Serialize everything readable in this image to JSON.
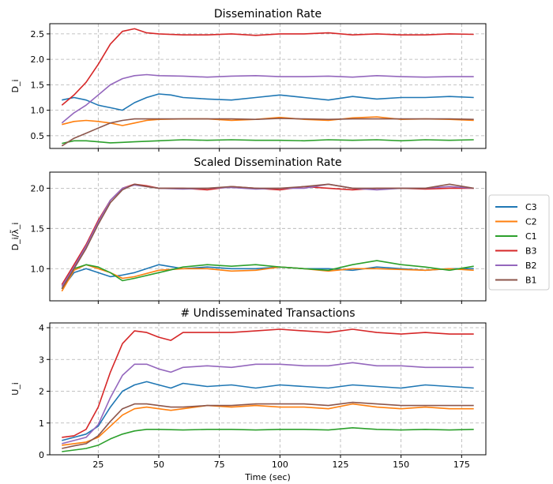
{
  "chart_data": [
    {
      "type": "line",
      "title": "Dissemination Rate",
      "ylabel": "D_i",
      "xlabel": "",
      "xlim": [
        5,
        185
      ],
      "ylim": [
        0.25,
        2.7
      ],
      "xticks": [
        25,
        50,
        75,
        100,
        125,
        150,
        175
      ],
      "yticks": [
        0.5,
        1.0,
        1.5,
        2.0,
        2.5
      ],
      "ytick_labels": [
        "0.5",
        "1.0",
        "1.5",
        "2.0",
        "2.5"
      ],
      "grid": true,
      "series": [
        {
          "name": "C3",
          "color": "#1f77b4",
          "x": [
            10,
            15,
            20,
            25,
            30,
            35,
            40,
            45,
            50,
            55,
            60,
            70,
            80,
            90,
            100,
            110,
            120,
            130,
            140,
            150,
            160,
            170,
            180
          ],
          "y": [
            1.2,
            1.25,
            1.2,
            1.1,
            1.05,
            1.0,
            1.15,
            1.25,
            1.32,
            1.3,
            1.25,
            1.22,
            1.2,
            1.25,
            1.3,
            1.25,
            1.2,
            1.27,
            1.22,
            1.25,
            1.25,
            1.27,
            1.25
          ]
        },
        {
          "name": "C2",
          "color": "#ff7f0e",
          "x": [
            10,
            15,
            20,
            25,
            30,
            35,
            40,
            45,
            50,
            60,
            70,
            80,
            90,
            100,
            110,
            120,
            130,
            140,
            150,
            160,
            170,
            180
          ],
          "y": [
            0.72,
            0.78,
            0.8,
            0.78,
            0.75,
            0.7,
            0.75,
            0.8,
            0.82,
            0.83,
            0.83,
            0.8,
            0.82,
            0.86,
            0.82,
            0.8,
            0.85,
            0.87,
            0.82,
            0.83,
            0.82,
            0.8
          ]
        },
        {
          "name": "C1",
          "color": "#2ca02c",
          "x": [
            10,
            15,
            20,
            25,
            30,
            35,
            40,
            50,
            60,
            70,
            80,
            90,
            100,
            110,
            120,
            130,
            140,
            150,
            160,
            170,
            180
          ],
          "y": [
            0.35,
            0.4,
            0.4,
            0.38,
            0.36,
            0.37,
            0.38,
            0.4,
            0.42,
            0.41,
            0.42,
            0.41,
            0.41,
            0.4,
            0.42,
            0.41,
            0.42,
            0.4,
            0.42,
            0.41,
            0.42
          ]
        },
        {
          "name": "B3",
          "color": "#d62728",
          "x": [
            10,
            15,
            20,
            25,
            30,
            35,
            40,
            45,
            50,
            60,
            70,
            80,
            90,
            100,
            110,
            120,
            130,
            140,
            150,
            160,
            170,
            180
          ],
          "y": [
            1.1,
            1.3,
            1.55,
            1.9,
            2.3,
            2.55,
            2.6,
            2.52,
            2.5,
            2.48,
            2.48,
            2.5,
            2.47,
            2.5,
            2.5,
            2.52,
            2.48,
            2.5,
            2.48,
            2.48,
            2.5,
            2.49
          ]
        },
        {
          "name": "B2",
          "color": "#9467bd",
          "x": [
            10,
            15,
            20,
            25,
            30,
            35,
            40,
            45,
            50,
            60,
            70,
            80,
            90,
            100,
            110,
            120,
            130,
            140,
            150,
            160,
            170,
            180
          ],
          "y": [
            0.75,
            0.95,
            1.1,
            1.3,
            1.5,
            1.62,
            1.68,
            1.7,
            1.68,
            1.67,
            1.65,
            1.67,
            1.68,
            1.66,
            1.66,
            1.67,
            1.65,
            1.68,
            1.66,
            1.65,
            1.66,
            1.66
          ]
        },
        {
          "name": "B1",
          "color": "#8c564b",
          "x": [
            10,
            15,
            20,
            25,
            30,
            35,
            40,
            45,
            50,
            60,
            70,
            80,
            90,
            100,
            110,
            120,
            130,
            140,
            150,
            160,
            170,
            180
          ],
          "y": [
            0.3,
            0.45,
            0.55,
            0.65,
            0.75,
            0.8,
            0.83,
            0.83,
            0.83,
            0.83,
            0.83,
            0.83,
            0.82,
            0.84,
            0.83,
            0.82,
            0.83,
            0.83,
            0.83,
            0.83,
            0.83,
            0.82
          ]
        }
      ]
    },
    {
      "type": "line",
      "title": "Scaled Dissemination Rate",
      "ylabel": "D_i/λ̃_i",
      "xlabel": "",
      "xlim": [
        5,
        185
      ],
      "ylim": [
        0.6,
        2.2
      ],
      "xticks": [
        25,
        50,
        75,
        100,
        125,
        150,
        175
      ],
      "yticks": [
        1.0,
        1.5,
        2.0
      ],
      "ytick_labels": [
        "1.0",
        "1.5",
        "2.0"
      ],
      "grid": true,
      "series": [
        {
          "name": "C3",
          "color": "#1f77b4",
          "x": [
            10,
            15,
            20,
            25,
            30,
            35,
            40,
            50,
            60,
            70,
            80,
            90,
            100,
            110,
            120,
            130,
            140,
            150,
            160,
            170,
            180
          ],
          "y": [
            0.75,
            0.95,
            1.0,
            0.95,
            0.9,
            0.92,
            0.95,
            1.05,
            1.0,
            1.02,
            1.0,
            1.0,
            1.02,
            1.0,
            1.0,
            0.98,
            1.02,
            1.0,
            0.98,
            1.0,
            1.0
          ]
        },
        {
          "name": "C2",
          "color": "#ff7f0e",
          "x": [
            10,
            15,
            20,
            25,
            30,
            35,
            40,
            50,
            60,
            70,
            80,
            90,
            100,
            110,
            120,
            130,
            140,
            150,
            160,
            170,
            180
          ],
          "y": [
            0.72,
            0.98,
            1.05,
            1.0,
            0.95,
            0.88,
            0.9,
            0.98,
            1.0,
            1.0,
            0.97,
            0.98,
            1.02,
            1.0,
            0.97,
            1.0,
            1.0,
            0.99,
            0.98,
            1.0,
            0.98
          ]
        },
        {
          "name": "C1",
          "color": "#2ca02c",
          "x": [
            10,
            15,
            20,
            25,
            30,
            35,
            40,
            50,
            60,
            70,
            80,
            90,
            100,
            110,
            120,
            130,
            140,
            150,
            160,
            170,
            180
          ],
          "y": [
            0.75,
            1.0,
            1.05,
            1.02,
            0.95,
            0.85,
            0.88,
            0.95,
            1.02,
            1.05,
            1.03,
            1.05,
            1.02,
            1.0,
            0.98,
            1.05,
            1.1,
            1.05,
            1.02,
            0.98,
            1.03
          ]
        },
        {
          "name": "B3",
          "color": "#d62728",
          "x": [
            10,
            15,
            20,
            25,
            30,
            35,
            40,
            45,
            50,
            60,
            70,
            80,
            90,
            100,
            110,
            120,
            130,
            140,
            150,
            160,
            170,
            180
          ],
          "y": [
            0.8,
            1.05,
            1.3,
            1.6,
            1.85,
            2.0,
            2.05,
            2.03,
            2.0,
            2.0,
            1.98,
            2.02,
            2.0,
            1.98,
            2.02,
            2.0,
            1.98,
            2.0,
            2.0,
            1.99,
            2.0,
            2.0
          ]
        },
        {
          "name": "B2",
          "color": "#9467bd",
          "x": [
            10,
            15,
            20,
            25,
            30,
            35,
            40,
            45,
            50,
            60,
            70,
            80,
            90,
            100,
            110,
            120,
            130,
            140,
            150,
            160,
            170,
            180
          ],
          "y": [
            0.78,
            1.02,
            1.28,
            1.58,
            1.85,
            2.0,
            2.04,
            2.02,
            2.0,
            1.99,
            2.0,
            2.01,
            1.99,
            2.0,
            2.0,
            2.05,
            2.0,
            1.98,
            2.0,
            2.0,
            2.02,
            2.0
          ]
        },
        {
          "name": "B1",
          "color": "#8c564b",
          "x": [
            10,
            15,
            20,
            25,
            30,
            35,
            40,
            45,
            50,
            60,
            70,
            80,
            90,
            100,
            110,
            120,
            130,
            140,
            150,
            160,
            170,
            180
          ],
          "y": [
            0.75,
            1.0,
            1.25,
            1.55,
            1.82,
            1.98,
            2.05,
            2.02,
            2.0,
            2.0,
            2.0,
            2.02,
            2.0,
            2.0,
            2.02,
            2.05,
            2.0,
            2.0,
            2.0,
            2.0,
            2.05,
            2.0
          ]
        }
      ]
    },
    {
      "type": "line",
      "title": "# Undisseminated Transactions",
      "ylabel": "U_i",
      "xlabel": "Time (sec)",
      "xlim": [
        5,
        185
      ],
      "ylim": [
        0,
        4.15
      ],
      "xticks": [
        25,
        50,
        75,
        100,
        125,
        150,
        175
      ],
      "xtick_labels": [
        "25",
        "50",
        "75",
        "100",
        "125",
        "150",
        "175"
      ],
      "yticks": [
        0,
        1,
        2,
        3,
        4
      ],
      "ytick_labels": [
        "0",
        "1",
        "2",
        "3",
        "4"
      ],
      "grid": true,
      "series": [
        {
          "name": "C3",
          "color": "#1f77b4",
          "x": [
            10,
            15,
            20,
            25,
            30,
            35,
            40,
            45,
            50,
            55,
            60,
            70,
            80,
            90,
            100,
            110,
            120,
            130,
            140,
            150,
            160,
            170,
            180
          ],
          "y": [
            0.45,
            0.55,
            0.65,
            0.9,
            1.5,
            2.0,
            2.2,
            2.3,
            2.2,
            2.1,
            2.25,
            2.15,
            2.2,
            2.1,
            2.2,
            2.15,
            2.1,
            2.2,
            2.15,
            2.1,
            2.2,
            2.15,
            2.1
          ]
        },
        {
          "name": "C2",
          "color": "#ff7f0e",
          "x": [
            10,
            15,
            20,
            25,
            30,
            35,
            40,
            45,
            50,
            55,
            60,
            70,
            80,
            90,
            100,
            110,
            120,
            130,
            140,
            150,
            160,
            170,
            180
          ],
          "y": [
            0.3,
            0.35,
            0.4,
            0.55,
            0.9,
            1.25,
            1.45,
            1.5,
            1.45,
            1.4,
            1.45,
            1.55,
            1.5,
            1.55,
            1.5,
            1.5,
            1.45,
            1.6,
            1.5,
            1.45,
            1.5,
            1.45,
            1.45
          ]
        },
        {
          "name": "C1",
          "color": "#2ca02c",
          "x": [
            10,
            15,
            20,
            25,
            30,
            35,
            40,
            45,
            50,
            60,
            70,
            80,
            90,
            100,
            110,
            120,
            130,
            140,
            150,
            160,
            170,
            180
          ],
          "y": [
            0.1,
            0.15,
            0.2,
            0.3,
            0.5,
            0.65,
            0.75,
            0.8,
            0.8,
            0.78,
            0.8,
            0.8,
            0.78,
            0.8,
            0.8,
            0.78,
            0.85,
            0.8,
            0.78,
            0.8,
            0.78,
            0.8
          ]
        },
        {
          "name": "B3",
          "color": "#d62728",
          "x": [
            10,
            15,
            20,
            25,
            30,
            35,
            40,
            45,
            50,
            55,
            60,
            70,
            80,
            90,
            100,
            110,
            120,
            130,
            140,
            150,
            160,
            170,
            180
          ],
          "y": [
            0.55,
            0.6,
            0.8,
            1.5,
            2.6,
            3.5,
            3.9,
            3.85,
            3.7,
            3.6,
            3.85,
            3.85,
            3.85,
            3.9,
            3.95,
            3.9,
            3.85,
            3.95,
            3.85,
            3.8,
            3.85,
            3.8,
            3.8
          ]
        },
        {
          "name": "B2",
          "color": "#9467bd",
          "x": [
            10,
            15,
            20,
            25,
            30,
            35,
            40,
            45,
            50,
            55,
            60,
            70,
            80,
            90,
            100,
            110,
            120,
            130,
            140,
            150,
            160,
            170,
            180
          ],
          "y": [
            0.35,
            0.45,
            0.55,
            0.95,
            1.8,
            2.5,
            2.85,
            2.85,
            2.7,
            2.6,
            2.75,
            2.8,
            2.75,
            2.85,
            2.85,
            2.8,
            2.8,
            2.9,
            2.8,
            2.8,
            2.75,
            2.75,
            2.75
          ]
        },
        {
          "name": "B1",
          "color": "#8c564b",
          "x": [
            10,
            15,
            20,
            25,
            30,
            35,
            40,
            45,
            50,
            55,
            60,
            70,
            80,
            90,
            100,
            110,
            120,
            130,
            140,
            150,
            160,
            170,
            180
          ],
          "y": [
            0.2,
            0.28,
            0.35,
            0.6,
            1.05,
            1.45,
            1.6,
            1.6,
            1.55,
            1.5,
            1.5,
            1.55,
            1.55,
            1.6,
            1.6,
            1.6,
            1.55,
            1.65,
            1.6,
            1.55,
            1.55,
            1.55,
            1.55
          ]
        }
      ]
    }
  ],
  "legend": {
    "placement": "right-middle",
    "entries": [
      {
        "label": "C3",
        "color": "#1f77b4"
      },
      {
        "label": "C2",
        "color": "#ff7f0e"
      },
      {
        "label": "C1",
        "color": "#2ca02c"
      },
      {
        "label": "B3",
        "color": "#d62728"
      },
      {
        "label": "B2",
        "color": "#9467bd"
      },
      {
        "label": "B1",
        "color": "#8c564b"
      }
    ]
  }
}
